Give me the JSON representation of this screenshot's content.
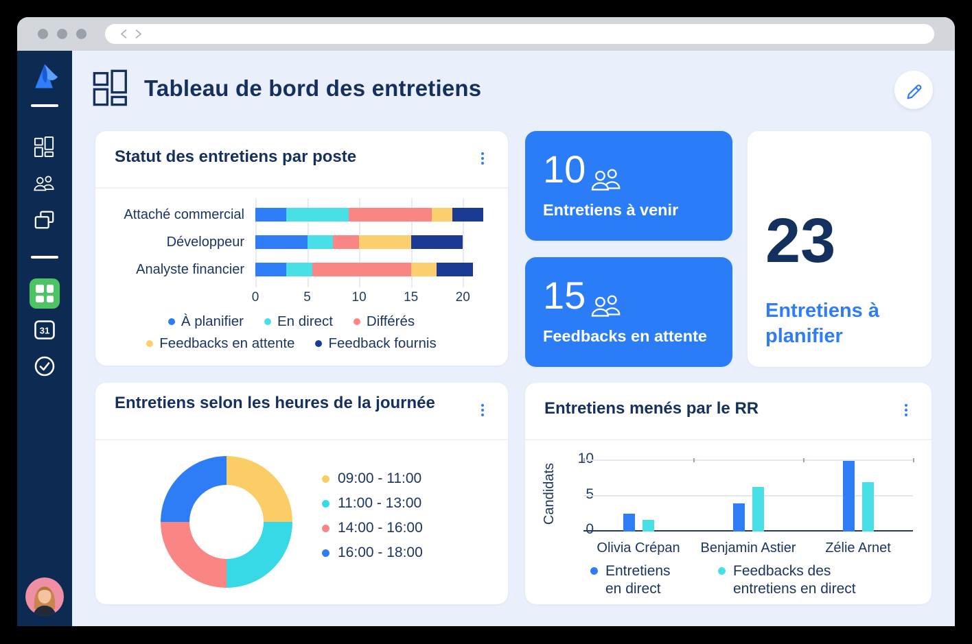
{
  "header": {
    "title": "Tableau de bord des entretiens"
  },
  "browser": {
    "back_icon": "chevron-left",
    "forward_icon": "chevron-right"
  },
  "sidebar": {
    "logo": "app-logo",
    "calendar_label": "31",
    "icons": [
      "dashboard-grid-icon",
      "people-icon",
      "copy-folder-icon",
      "widgets-grid-icon",
      "calendar-icon",
      "check-circle-icon"
    ],
    "active_item": "widgets-grid-icon",
    "active_color": "#4CC464"
  },
  "cards": {
    "status": {
      "title": "Statut des entretiens par poste"
    },
    "upcoming": {
      "value": "10",
      "label": "Entretiens à venir"
    },
    "pending": {
      "value": "15",
      "label": "Feedbacks en attente"
    },
    "to_plan": {
      "value": "23",
      "label": "Entretiens à planifier"
    },
    "hours": {
      "title": "Entretiens selon les heures de la journée"
    },
    "rr": {
      "title": "Entretiens menés par le RR"
    }
  },
  "colors": {
    "accent_blue": "#2E7DF7",
    "card_blue": "#2B7DF7",
    "navy_text": "#15305F",
    "sidebar_bg": "#0D2B52",
    "main_bg": "#E9F0FC",
    "green_active": "#4CC464"
  },
  "chart_data": [
    {
      "id": "status_by_position",
      "type": "bar",
      "orientation": "horizontal",
      "stacked": true,
      "title": "Statut des entretiens par poste",
      "categories": [
        "Attaché commercial",
        "Développeur",
        "Analyste financier"
      ],
      "series": [
        {
          "name": "À planifier",
          "color": "#2E7DF7",
          "values": [
            3,
            5,
            3
          ]
        },
        {
          "name": "En direct",
          "color": "#49DFE6",
          "values": [
            6,
            2.5,
            2.5
          ]
        },
        {
          "name": "Différés",
          "color": "#F98585",
          "values": [
            8,
            2.5,
            9.5
          ]
        },
        {
          "name": "Feedbacks en attente",
          "color": "#FBCF6E",
          "values": [
            2,
            5,
            2.5
          ]
        },
        {
          "name": "Feedback fournis",
          "color": "#1A3A94",
          "values": [
            3,
            5,
            3.5
          ]
        }
      ],
      "xlim": [
        0,
        22.5
      ],
      "xticks": [
        0,
        5,
        10,
        15,
        20
      ],
      "legend_rows": [
        3,
        2
      ],
      "grid": true
    },
    {
      "id": "interviews_by_hour",
      "type": "pie",
      "donut": true,
      "title": "Entretiens selon les heures de la journée",
      "labels": [
        "09:00 - 11:00",
        "11:00 - 13:00",
        "14:00 - 16:00",
        "16:00 - 18:00"
      ],
      "values": [
        25,
        25,
        25,
        25
      ],
      "colors": [
        "#FBCD66",
        "#38D9E6",
        "#F98585",
        "#2E7DF7"
      ],
      "legend_position": "right"
    },
    {
      "id": "interviews_by_rr",
      "type": "bar",
      "title": "Entretiens menés par le RR",
      "ylabel": "Candidats",
      "categories": [
        "Olivia Crépan",
        "Benjamin Astier",
        "Zélie Arnet"
      ],
      "series": [
        {
          "name": "Entretiens en direct",
          "color": "#2E7DF7",
          "values": [
            2.5,
            4,
            10
          ]
        },
        {
          "name": "Feedbacks des entretiens en direct",
          "color": "#49DFE6",
          "values": [
            1.7,
            6.3,
            7
          ]
        }
      ],
      "ylim": [
        0,
        10.7
      ],
      "yticks": [
        0,
        5,
        10
      ],
      "grid": true
    }
  ]
}
